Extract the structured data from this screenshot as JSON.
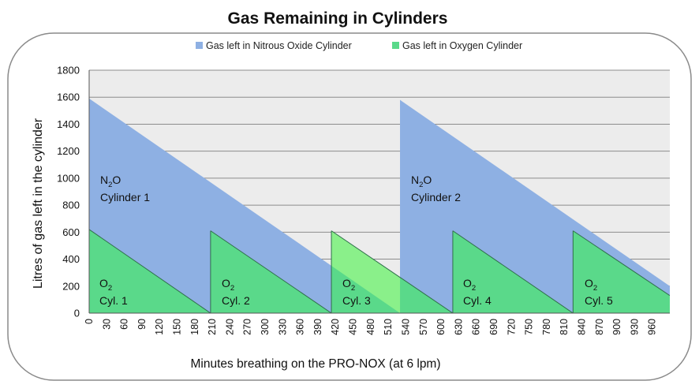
{
  "chart_data": {
    "type": "area",
    "title": "Gas Remaining in Cylinders",
    "xlabel": "Minutes breathing on the PRO-NOX (at 6 lpm)",
    "ylabel": "Litres of gas left in the cylinder",
    "xlim": [
      0,
      990
    ],
    "ylim": [
      0,
      1800
    ],
    "yticks": [
      0,
      200,
      400,
      600,
      800,
      1000,
      1200,
      1400,
      1600,
      1800
    ],
    "xtick_step": 30,
    "grid": true,
    "legend_position": "top",
    "series": [
      {
        "name": "Gas left in Nitrous Oxide Cylinder",
        "color": "#8eb0e3",
        "segments": [
          {
            "label_main": "N",
            "label_sub": "2",
            "label_after": "O",
            "label_line2": "Cylinder 1",
            "start_minute": 0,
            "start_litres": 1590,
            "end_minute": 530,
            "end_litres": 0
          },
          {
            "label_main": "N",
            "label_sub": "2",
            "label_after": "O",
            "label_line2": "Cylinder 2",
            "start_minute": 530,
            "start_litres": 1580,
            "end_minute": 990,
            "end_litres": 200
          }
        ]
      },
      {
        "name": "Gas left in Oxygen Cylinder",
        "color": "#5ad98a",
        "segments": [
          {
            "label_main": "O",
            "label_sub": "2",
            "label_after": "",
            "label_line2": "Cyl. 1",
            "start_minute": 0,
            "start_litres": 620,
            "end_minute": 207,
            "end_litres": 0
          },
          {
            "label_main": "O",
            "label_sub": "2",
            "label_after": "",
            "label_line2": "Cyl. 2",
            "start_minute": 207,
            "start_litres": 610,
            "end_minute": 413,
            "end_litres": 0
          },
          {
            "label_main": "O",
            "label_sub": "2",
            "label_after": "",
            "label_line2": "Cyl. 3",
            "start_minute": 413,
            "start_litres": 610,
            "end_minute": 620,
            "end_litres": 0
          },
          {
            "label_main": "O",
            "label_sub": "2",
            "label_after": "",
            "label_line2": "Cyl. 4",
            "start_minute": 620,
            "start_litres": 610,
            "end_minute": 825,
            "end_litres": 0
          },
          {
            "label_main": "O",
            "label_sub": "2",
            "label_after": "",
            "label_line2": "Cyl. 5",
            "start_minute": 825,
            "start_litres": 610,
            "end_minute": 990,
            "end_litres": 130
          }
        ]
      }
    ],
    "overlap_color": "#8af08a"
  }
}
